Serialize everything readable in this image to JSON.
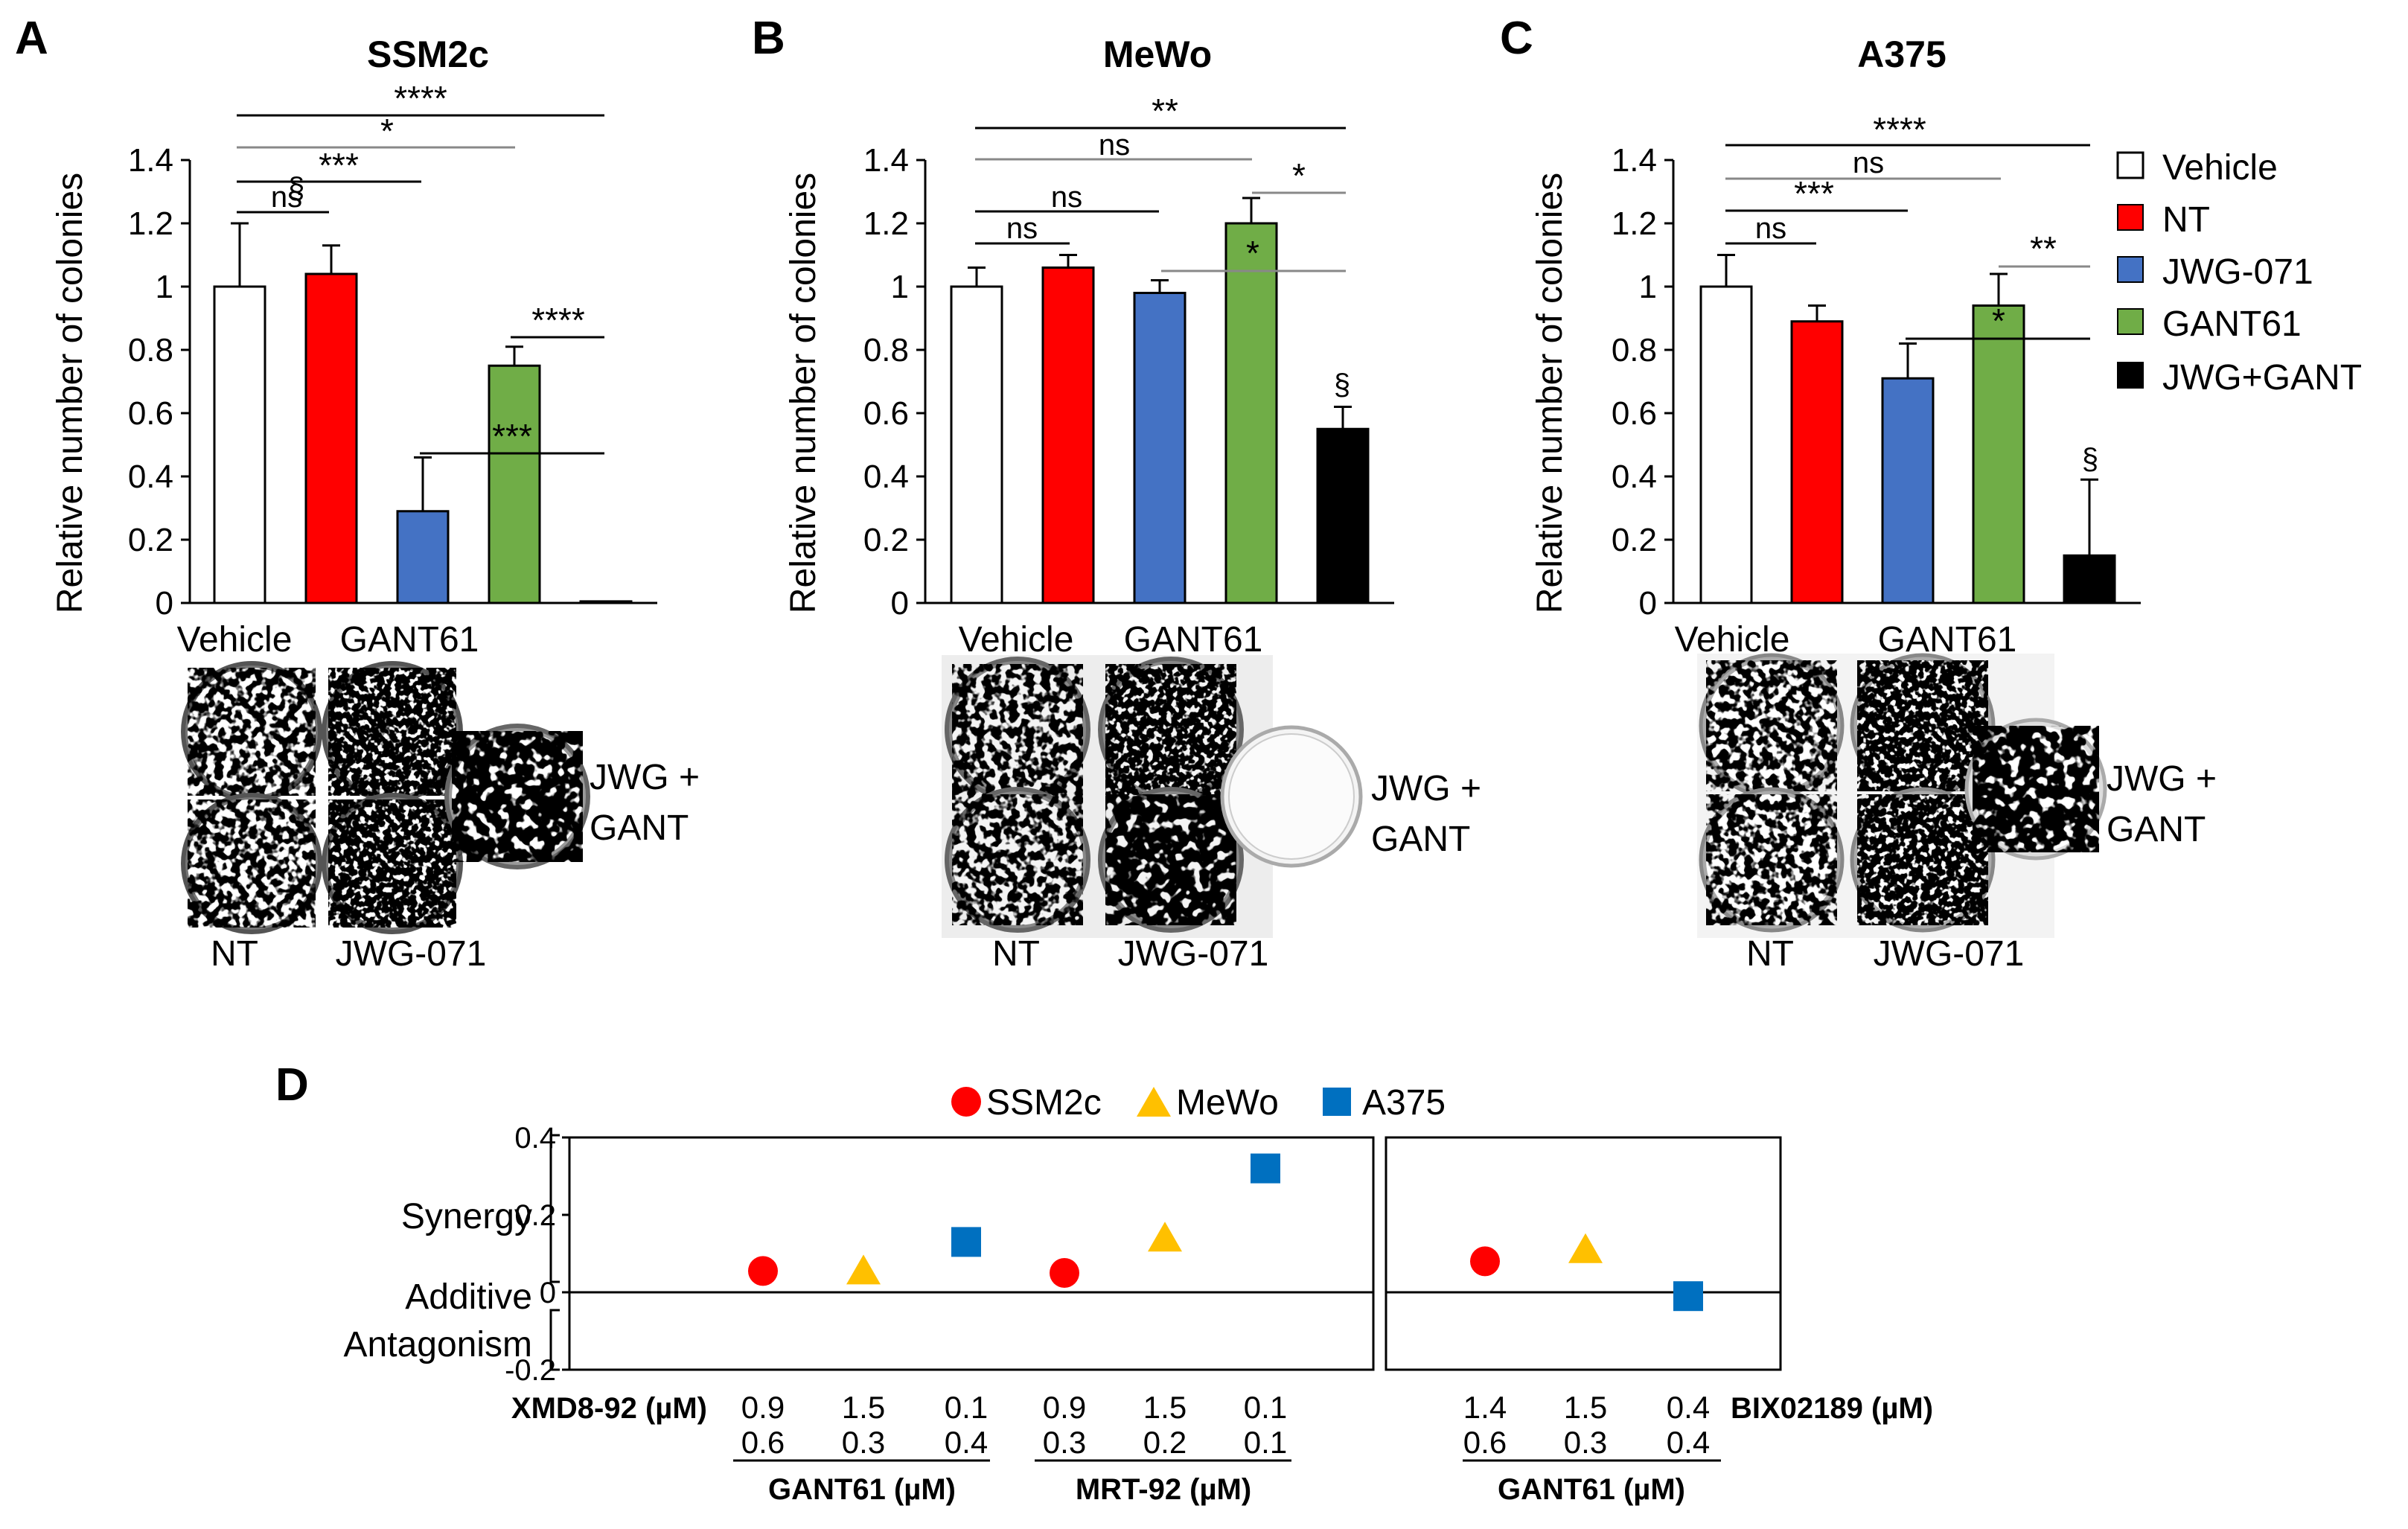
{
  "chart_data": [
    {
      "panel": "A",
      "type": "bar",
      "title": "SSM2c",
      "ylabel": "Relative number of colonies",
      "ylim": [
        0,
        1.4
      ],
      "yticks": [
        "0",
        "0.2",
        "0.4",
        "0.6",
        "0.8",
        "1",
        "1.2",
        "1.4"
      ],
      "categories": [
        "Vehicle",
        "NT",
        "JWG-071",
        "GANT61",
        "JWG+GANT"
      ],
      "values": [
        1.0,
        1.04,
        0.29,
        0.75,
        0.005
      ],
      "errors": [
        0.2,
        0.09,
        0.17,
        0.06,
        0.0
      ],
      "colors": [
        "#ffffff",
        "#ff0000",
        "#4472c4",
        "#70ad47",
        "#000000"
      ],
      "section": "§",
      "comparisons": [
        {
          "label": "****"
        },
        {
          "label": "*"
        },
        {
          "label": "***"
        },
        {
          "label": "ns"
        },
        {
          "label": "****"
        },
        {
          "label": "***"
        }
      ],
      "plate_labels": {
        "top_left": "Vehicle",
        "top_right": "GANT61",
        "right_line1": "JWG +",
        "right_line2": "GANT",
        "bottom_left": "NT",
        "bottom_right": "JWG-071"
      }
    },
    {
      "panel": "B",
      "type": "bar",
      "title": "MeWo",
      "ylabel": "Relative number of colonies",
      "ylim": [
        0,
        1.4
      ],
      "yticks": [
        "0",
        "0.2",
        "0.4",
        "0.6",
        "0.8",
        "1",
        "1.2",
        "1.4"
      ],
      "categories": [
        "Vehicle",
        "NT",
        "JWG-071",
        "GANT61",
        "JWG+GANT"
      ],
      "values": [
        1.0,
        1.06,
        0.98,
        1.2,
        0.55
      ],
      "errors": [
        0.06,
        0.04,
        0.04,
        0.08,
        0.07
      ],
      "colors": [
        "#ffffff",
        "#ff0000",
        "#4472c4",
        "#70ad47",
        "#000000"
      ],
      "section": "§",
      "comparisons": [
        {
          "label": "**"
        },
        {
          "label": "ns"
        },
        {
          "label": "ns"
        },
        {
          "label": "ns"
        },
        {
          "label": "*"
        },
        {
          "label": "*"
        }
      ],
      "plate_labels": {
        "top_left": "Vehicle",
        "top_right": "GANT61",
        "right_line1": "JWG +",
        "right_line2": "GANT",
        "bottom_left": "NT",
        "bottom_right": "JWG-071"
      }
    },
    {
      "panel": "C",
      "type": "bar",
      "title": "A375",
      "ylabel": "Relative number of colonies",
      "ylim": [
        0,
        1.4
      ],
      "yticks": [
        "0",
        "0.2",
        "0.4",
        "0.6",
        "0.8",
        "1",
        "1.2",
        "1.4"
      ],
      "categories": [
        "Vehicle",
        "NT",
        "JWG-071",
        "GANT61",
        "JWG+GANT"
      ],
      "values": [
        1.0,
        0.89,
        0.71,
        0.94,
        0.15
      ],
      "errors": [
        0.1,
        0.05,
        0.11,
        0.1,
        0.24
      ],
      "colors": [
        "#ffffff",
        "#ff0000",
        "#4472c4",
        "#70ad47",
        "#000000"
      ],
      "section": "§",
      "comparisons": [
        {
          "label": "****"
        },
        {
          "label": "ns"
        },
        {
          "label": "***"
        },
        {
          "label": "ns"
        },
        {
          "label": "**"
        },
        {
          "label": "*"
        }
      ],
      "plate_labels": {
        "top_left": "Vehicle",
        "top_right": "GANT61",
        "right_line1": "JWG +",
        "right_line2": "GANT",
        "bottom_left": "NT",
        "bottom_right": "JWG-071"
      }
    },
    {
      "panel": "D",
      "type": "scatter",
      "ylim": [
        -0.2,
        0.4
      ],
      "yticks": [
        "-0.2",
        "0",
        "0.2",
        "0.4"
      ],
      "y_categories": {
        "synergy": "Synergy",
        "additive": "Additive",
        "antagonism": "Antagonism"
      },
      "legend": [
        {
          "name": "SSM2c",
          "marker": "circle",
          "color": "#ff0000"
        },
        {
          "name": "MeWo",
          "marker": "triangle",
          "color": "#ffc000"
        },
        {
          "name": "A375",
          "marker": "square",
          "color": "#0070c0"
        }
      ],
      "left_group": {
        "row1_label": "XMD8-92 (µM)",
        "points": [
          {
            "series": "SSM2c",
            "value": 0.055,
            "row1": "0.9",
            "row2": "0.6"
          },
          {
            "series": "MeWo",
            "value": 0.055,
            "row1": "1.5",
            "row2": "0.3"
          },
          {
            "series": "A375",
            "value": 0.13,
            "row1": "0.1",
            "row2": "0.4"
          },
          {
            "series": "SSM2c",
            "value": 0.05,
            "row1": "0.9",
            "row2": "0.3"
          },
          {
            "series": "MeWo",
            "value": 0.14,
            "row1": "1.5",
            "row2": "0.2"
          },
          {
            "series": "A375",
            "value": 0.32,
            "row1": "0.1",
            "row2": "0.1"
          }
        ],
        "subgroups": [
          "GANT61 (µM)",
          "MRT-92 (µM)"
        ]
      },
      "right_group": {
        "row1_label": "BIX02189 (µM)",
        "points": [
          {
            "series": "SSM2c",
            "value": 0.08,
            "row1": "1.4",
            "row2": "0.6"
          },
          {
            "series": "MeWo",
            "value": 0.11,
            "row1": "1.5",
            "row2": "0.3"
          },
          {
            "series": "A375",
            "value": -0.01,
            "row1": "0.4",
            "row2": "0.4"
          }
        ],
        "subgroup": "GANT61 (µM)"
      }
    }
  ]
}
